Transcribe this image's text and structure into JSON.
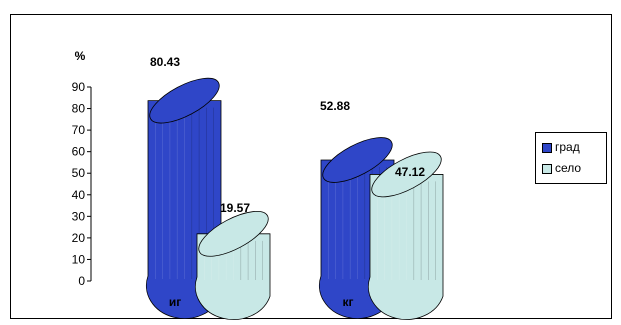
{
  "chart_data": {
    "type": "bar",
    "style": "3d-cylinder",
    "ylabel": "%",
    "ylim": [
      0,
      90
    ],
    "yticks": [
      "0",
      "10",
      "20",
      "30",
      "40",
      "50",
      "60",
      "70",
      "80",
      "90"
    ],
    "categories": [
      "иг",
      "кг"
    ],
    "series": [
      {
        "name": "град",
        "values": [
          80.43,
          52.88
        ],
        "labels": [
          "80.43",
          "52.88"
        ],
        "color": "#2f46c8"
      },
      {
        "name": "село",
        "values": [
          19.57,
          47.12
        ],
        "labels": [
          "19.57",
          "47.12"
        ],
        "color": "#c8e8e6"
      }
    ],
    "legend": "right"
  }
}
